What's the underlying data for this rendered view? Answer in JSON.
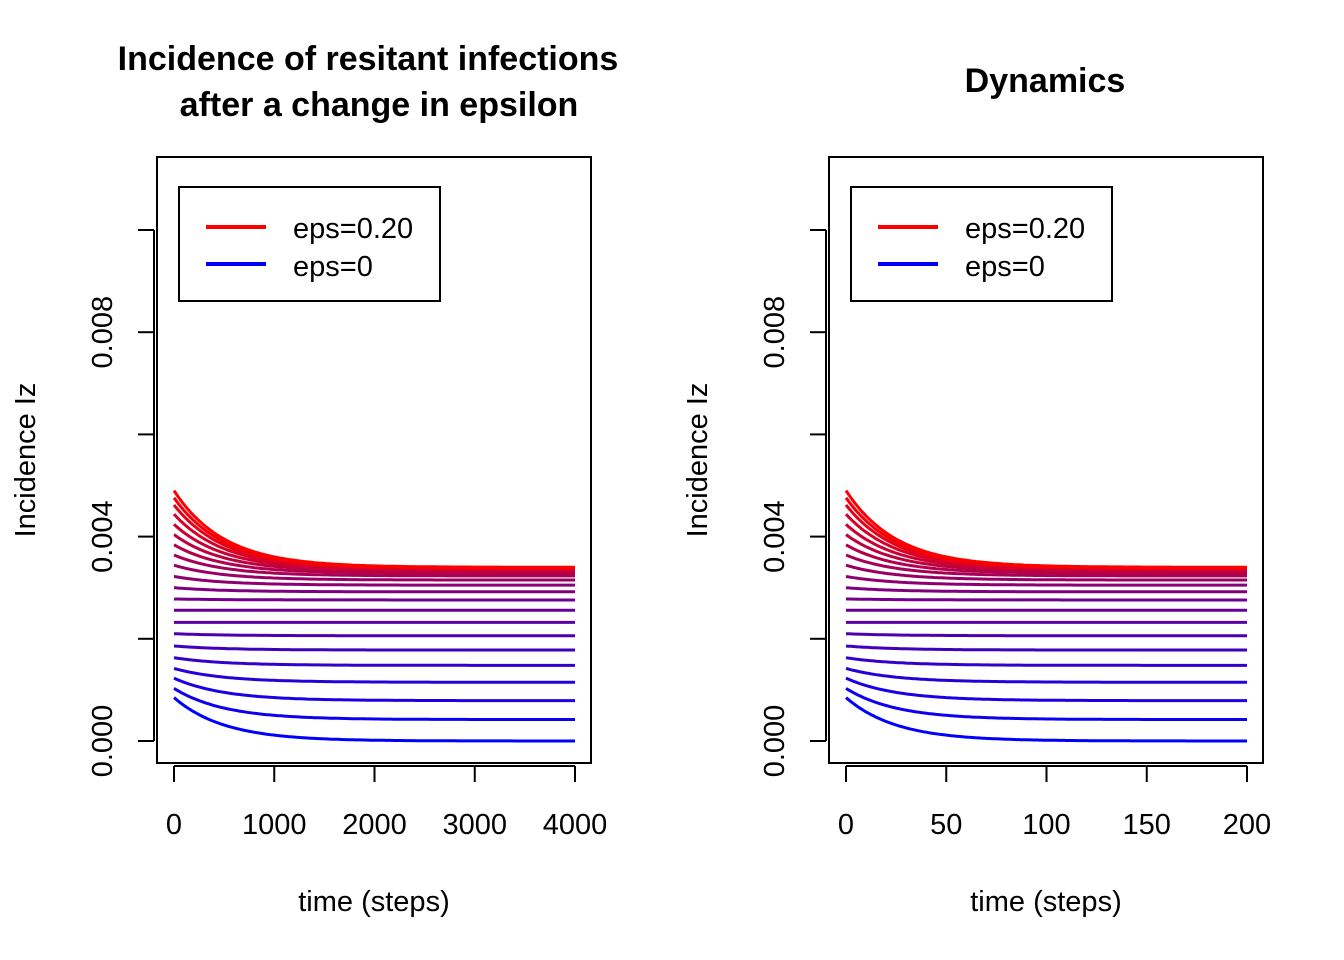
{
  "colors": {
    "high": "#ff0000",
    "low": "#0000ff",
    "axis": "#000000",
    "background": "#ffffff"
  },
  "chart_data": [
    {
      "type": "line",
      "title_lines": [
        "Incidence of resitant infections",
        "after a change in epsilon"
      ],
      "xlabel": "time (steps)",
      "ylabel": "Incidence Iz",
      "xlim": [
        0,
        4000
      ],
      "ylim": [
        0,
        0.0102
      ],
      "xticks": [
        0,
        1000,
        2000,
        3000,
        4000
      ],
      "xtick_labels": [
        "0",
        "1000",
        "2000",
        "3000",
        "4000"
      ],
      "yticks": [
        0,
        0.002,
        0.004,
        0.006,
        0.008,
        0.01
      ],
      "ytick_labels": [
        "0.000",
        "",
        "0.004",
        "",
        "0.008",
        ""
      ],
      "grid": false,
      "legend": {
        "position": "top-left",
        "entries": [
          {
            "label": "eps=0.20",
            "color": "#ff0000"
          },
          {
            "label": "eps=0",
            "color": "#0000ff"
          }
        ]
      },
      "curve_model": "start + (end - start) * (1 - exp(-t / tau))",
      "series": [
        {
          "start": 0.00085,
          "end": 0.0,
          "tau": 25,
          "color": "#0000ff"
        },
        {
          "start": 0.00103,
          "end": 0.00042,
          "tau": 25,
          "color": "#0c00f2"
        },
        {
          "start": 0.00123,
          "end": 0.00079,
          "tau": 25,
          "color": "#1900e6"
        },
        {
          "start": 0.00142,
          "end": 0.00115,
          "tau": 25,
          "color": "#2600d9"
        },
        {
          "start": 0.00163,
          "end": 0.00148,
          "tau": 25,
          "color": "#3300cc"
        },
        {
          "start": 0.00186,
          "end": 0.00178,
          "tau": 25,
          "color": "#3f00bf"
        },
        {
          "start": 0.0021,
          "end": 0.00206,
          "tau": 25,
          "color": "#4c00b2"
        },
        {
          "start": 0.00232,
          "end": 0.00232,
          "tau": 25,
          "color": "#5900a6"
        },
        {
          "start": 0.00256,
          "end": 0.00256,
          "tau": 25,
          "color": "#660099"
        },
        {
          "start": 0.00278,
          "end": 0.00276,
          "tau": 25,
          "color": "#72008c"
        },
        {
          "start": 0.003,
          "end": 0.00292,
          "tau": 25,
          "color": "#7f007f"
        },
        {
          "start": 0.00322,
          "end": 0.00305,
          "tau": 25,
          "color": "#8c0072"
        },
        {
          "start": 0.00344,
          "end": 0.00315,
          "tau": 25,
          "color": "#990066"
        },
        {
          "start": 0.00364,
          "end": 0.00323,
          "tau": 25,
          "color": "#a60059"
        },
        {
          "start": 0.00384,
          "end": 0.00328,
          "tau": 25,
          "color": "#b2004c"
        },
        {
          "start": 0.00404,
          "end": 0.00332,
          "tau": 25,
          "color": "#bf003f"
        },
        {
          "start": 0.00424,
          "end": 0.00335,
          "tau": 25,
          "color": "#cc0033"
        },
        {
          "start": 0.00444,
          "end": 0.00337,
          "tau": 25,
          "color": "#d90026"
        },
        {
          "start": 0.00462,
          "end": 0.00338,
          "tau": 25,
          "color": "#e60019"
        },
        {
          "start": 0.00476,
          "end": 0.00339,
          "tau": 25,
          "color": "#f2000c"
        },
        {
          "start": 0.0049,
          "end": 0.0034,
          "tau": 25,
          "color": "#ff0000"
        }
      ]
    },
    {
      "type": "line",
      "title_lines": [
        "Dynamics"
      ],
      "xlabel": "time (steps)",
      "ylabel": "Incidence Iz",
      "xlim": [
        0,
        200
      ],
      "ylim": [
        0,
        0.0102
      ],
      "xticks": [
        0,
        50,
        100,
        150,
        200
      ],
      "xtick_labels": [
        "0",
        "50",
        "100",
        "150",
        "200"
      ],
      "yticks": [
        0,
        0.002,
        0.004,
        0.006,
        0.008,
        0.01
      ],
      "ytick_labels": [
        "0.000",
        "",
        "0.004",
        "",
        "0.008",
        ""
      ],
      "grid": false,
      "legend": {
        "position": "top-left",
        "entries": [
          {
            "label": "eps=0.20",
            "color": "#ff0000"
          },
          {
            "label": "eps=0",
            "color": "#0000ff"
          }
        ]
      },
      "curve_model": "start + (end - start) * (1 - exp(-t / tau))",
      "series": [
        {
          "start": 0.00085,
          "end": 0.0,
          "tau": 25,
          "color": "#0000ff"
        },
        {
          "start": 0.00103,
          "end": 0.00042,
          "tau": 25,
          "color": "#0c00f2"
        },
        {
          "start": 0.00123,
          "end": 0.00079,
          "tau": 25,
          "color": "#1900e6"
        },
        {
          "start": 0.00142,
          "end": 0.00115,
          "tau": 25,
          "color": "#2600d9"
        },
        {
          "start": 0.00163,
          "end": 0.00148,
          "tau": 25,
          "color": "#3300cc"
        },
        {
          "start": 0.00186,
          "end": 0.00178,
          "tau": 25,
          "color": "#3f00bf"
        },
        {
          "start": 0.0021,
          "end": 0.00206,
          "tau": 25,
          "color": "#4c00b2"
        },
        {
          "start": 0.00232,
          "end": 0.00232,
          "tau": 25,
          "color": "#5900a6"
        },
        {
          "start": 0.00256,
          "end": 0.00256,
          "tau": 25,
          "color": "#660099"
        },
        {
          "start": 0.00278,
          "end": 0.00276,
          "tau": 25,
          "color": "#72008c"
        },
        {
          "start": 0.003,
          "end": 0.00292,
          "tau": 25,
          "color": "#7f007f"
        },
        {
          "start": 0.00322,
          "end": 0.00305,
          "tau": 25,
          "color": "#8c0072"
        },
        {
          "start": 0.00344,
          "end": 0.00315,
          "tau": 25,
          "color": "#990066"
        },
        {
          "start": 0.00364,
          "end": 0.00323,
          "tau": 25,
          "color": "#a60059"
        },
        {
          "start": 0.00384,
          "end": 0.00328,
          "tau": 25,
          "color": "#b2004c"
        },
        {
          "start": 0.00404,
          "end": 0.00332,
          "tau": 25,
          "color": "#bf003f"
        },
        {
          "start": 0.00424,
          "end": 0.00335,
          "tau": 25,
          "color": "#cc0033"
        },
        {
          "start": 0.00444,
          "end": 0.00337,
          "tau": 25,
          "color": "#d90026"
        },
        {
          "start": 0.00462,
          "end": 0.00338,
          "tau": 25,
          "color": "#e60019"
        },
        {
          "start": 0.00476,
          "end": 0.00339,
          "tau": 25,
          "color": "#f2000c"
        },
        {
          "start": 0.0049,
          "end": 0.0034,
          "tau": 25,
          "color": "#ff0000"
        }
      ]
    }
  ]
}
